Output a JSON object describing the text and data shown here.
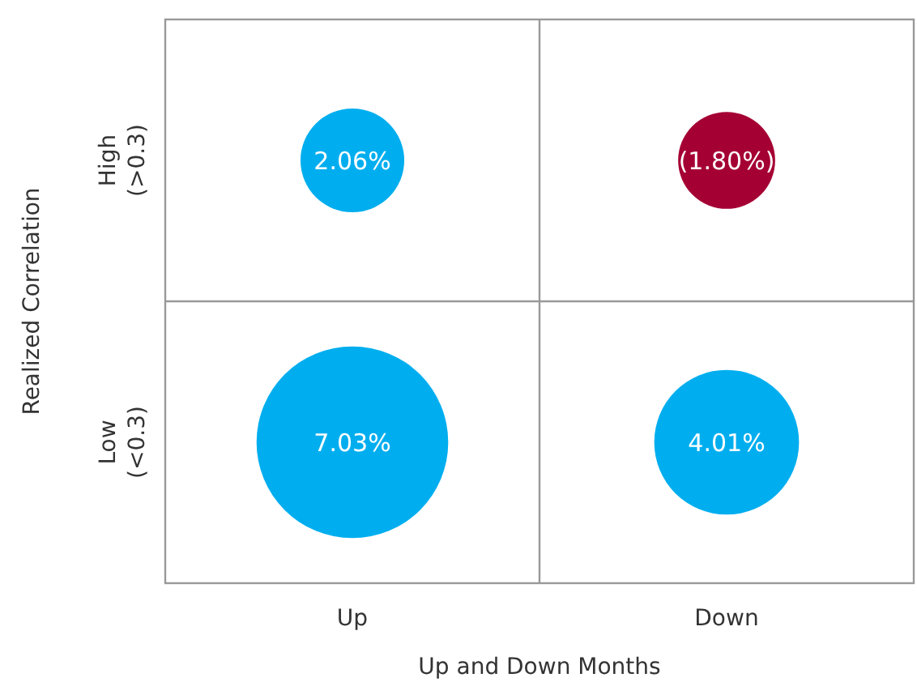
{
  "chart_data": {
    "type": "heatmap",
    "xlabel": "Up and Down Months",
    "ylabel": "Realized Correlation",
    "categories": [
      "Up",
      "Down"
    ],
    "y_categories": [
      "High\n(>0.3)",
      "Low\n(<0.3)"
    ],
    "cells": [
      [
        2.06,
        -1.8
      ],
      [
        7.03,
        4.01
      ]
    ],
    "cell_labels": [
      [
        "2.06%",
        "(1.80%)"
      ],
      [
        "7.03%",
        "4.01%"
      ]
    ],
    "colors": [
      [
        "#00aeef",
        "#a50034"
      ],
      [
        "#00aeef",
        "#00aeef"
      ]
    ]
  }
}
